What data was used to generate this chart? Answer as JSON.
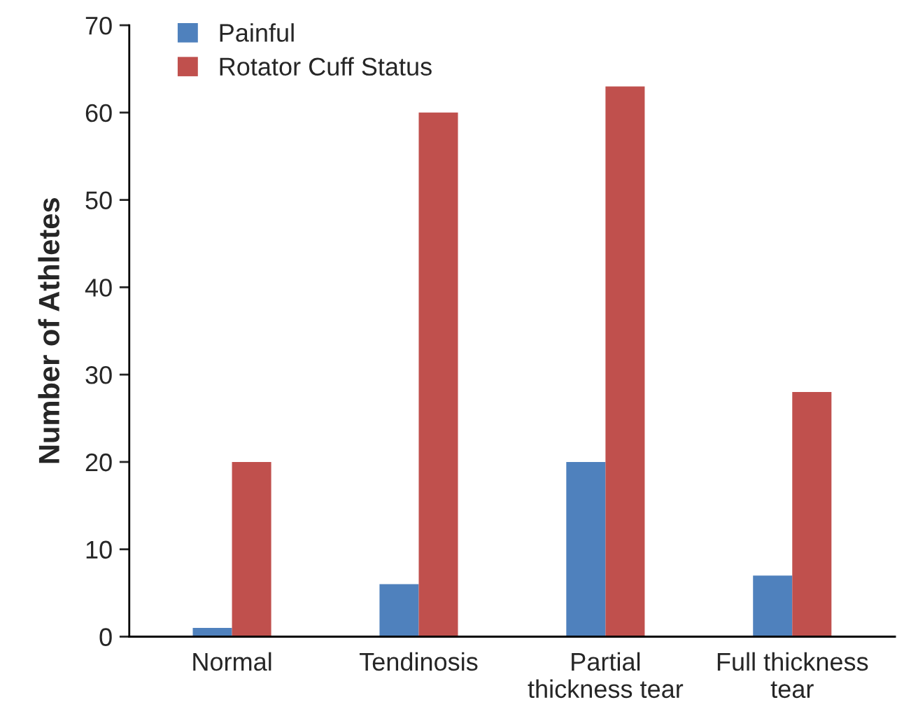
{
  "chart_data": {
    "type": "bar",
    "ylabel": "Number of Athletes",
    "categories": [
      "Normal",
      "Tendinosis",
      "Partial\nthickness tear",
      "Full thickness\ntear"
    ],
    "series": [
      {
        "name": "Painful",
        "color": "#4f81bd",
        "values": [
          1,
          6,
          20,
          7
        ]
      },
      {
        "name": "Rotator Cuff Status",
        "color": "#c0504d",
        "values": [
          20,
          60,
          63,
          28
        ]
      }
    ],
    "ylim": [
      0,
      70
    ],
    "yticks": [
      0,
      10,
      20,
      30,
      40,
      50,
      60,
      70
    ],
    "grid": false,
    "legend": "top left"
  }
}
